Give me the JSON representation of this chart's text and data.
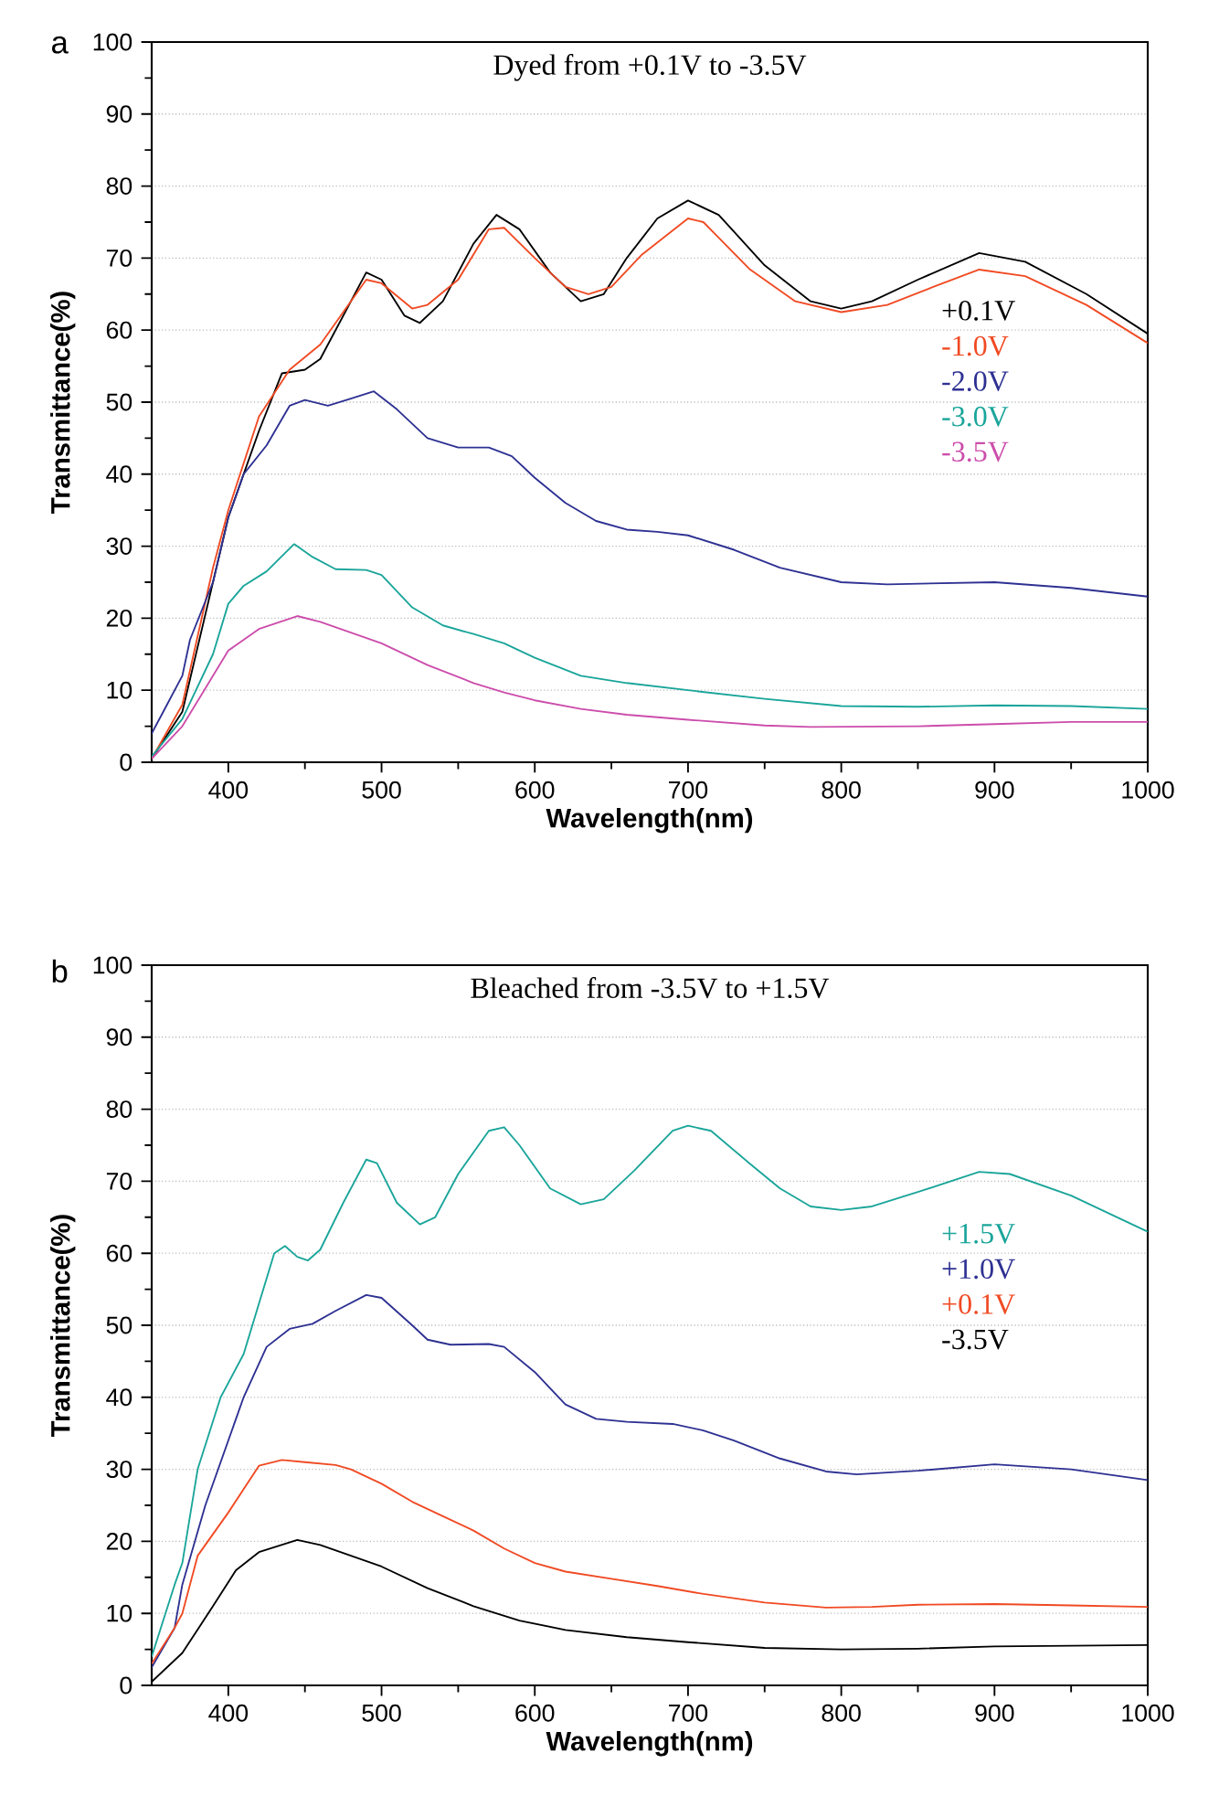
{
  "chart_data": [
    {
      "type": "line",
      "title": "Dyed from +0.1V to -3.5V",
      "xlabel": "Wavelength(nm)",
      "ylabel": "Transmittance(%)",
      "annotations": [
        "a"
      ],
      "xlim": [
        350,
        1000
      ],
      "xticks": [
        400,
        500,
        600,
        700,
        800,
        900,
        1000
      ],
      "ylim": [
        0,
        100
      ],
      "yticks": [
        0,
        10,
        20,
        30,
        40,
        50,
        60,
        70,
        80,
        90,
        100
      ],
      "grid": "y",
      "legend": "right",
      "line_style": "solid",
      "series": [
        {
          "name": "+0.1V",
          "color": "#000000",
          "x": [
            350,
            370,
            390,
            400,
            420,
            435,
            450,
            460,
            475,
            490,
            500,
            515,
            525,
            540,
            560,
            575,
            590,
            610,
            630,
            645,
            660,
            680,
            700,
            720,
            750,
            780,
            800,
            820,
            850,
            890,
            920,
            960,
            1000
          ],
          "values": [
            0.5,
            7,
            25,
            34,
            46,
            54,
            54.5,
            56,
            62,
            68,
            67,
            62,
            61,
            64,
            72,
            76,
            74,
            68,
            64,
            65,
            70,
            75.5,
            78,
            76,
            69,
            64,
            63,
            64,
            67,
            70.7,
            69.5,
            65,
            59.5
          ]
        },
        {
          "name": "-1.0V",
          "color": "#f04a23",
          "x": [
            350,
            370,
            390,
            400,
            420,
            440,
            460,
            480,
            490,
            500,
            520,
            530,
            550,
            570,
            580,
            600,
            620,
            635,
            650,
            670,
            700,
            710,
            740,
            770,
            800,
            830,
            860,
            890,
            920,
            960,
            1000
          ],
          "values": [
            0.5,
            8,
            27,
            35,
            48,
            54.5,
            58,
            64,
            67,
            66.5,
            63,
            63.5,
            67,
            74,
            74.2,
            70,
            66,
            65,
            66,
            70.5,
            75.5,
            75,
            68.5,
            64,
            62.5,
            63.5,
            66,
            68.4,
            67.5,
            63.5,
            58.2
          ]
        },
        {
          "name": "-2.0V",
          "color": "#2e3192",
          "x": [
            350,
            360,
            370,
            375,
            390,
            400,
            410,
            425,
            440,
            450,
            465,
            480,
            495,
            510,
            530,
            550,
            570,
            585,
            600,
            620,
            640,
            660,
            680,
            700,
            730,
            760,
            800,
            830,
            900,
            950,
            1000
          ],
          "values": [
            4,
            8,
            12,
            17,
            25,
            34,
            40,
            44,
            49.5,
            50.3,
            49.5,
            50.5,
            51.5,
            49,
            45,
            43.7,
            43.7,
            42.5,
            39.5,
            36,
            33.5,
            32.3,
            32,
            31.5,
            29.5,
            27,
            25,
            24.7,
            25,
            24.2,
            23
          ]
        },
        {
          "name": "-3.0V",
          "color": "#1aa59a",
          "x": [
            350,
            370,
            390,
            400,
            410,
            425,
            443,
            455,
            470,
            490,
            500,
            520,
            540,
            560,
            580,
            600,
            630,
            660,
            700,
            750,
            800,
            850,
            900,
            950,
            1000
          ],
          "values": [
            0.8,
            6,
            15,
            22,
            24.5,
            26.5,
            30.3,
            28.5,
            26.8,
            26.7,
            26,
            21.5,
            19,
            17.8,
            16.5,
            14.5,
            12,
            11,
            10,
            8.8,
            7.8,
            7.7,
            7.9,
            7.8,
            7.4
          ]
        },
        {
          "name": "-3.5V",
          "color": "#cc4dab",
          "x": [
            350,
            370,
            390,
            400,
            420,
            445,
            460,
            480,
            500,
            530,
            560,
            580,
            600,
            630,
            660,
            700,
            750,
            780,
            850,
            900,
            950,
            1000
          ],
          "values": [
            0.5,
            5,
            12,
            15.5,
            18.5,
            20.3,
            19.5,
            18,
            16.5,
            13.5,
            11,
            9.7,
            8.6,
            7.4,
            6.6,
            5.9,
            5.1,
            4.9,
            5,
            5.3,
            5.6,
            5.6
          ]
        }
      ]
    },
    {
      "type": "line",
      "title": "Bleached from -3.5V to +1.5V",
      "xlabel": "Wavelength(nm)",
      "ylabel": "Transmittance(%)",
      "annotations": [
        "b"
      ],
      "xlim": [
        350,
        1000
      ],
      "xticks": [
        400,
        500,
        600,
        700,
        800,
        900,
        1000
      ],
      "ylim": [
        0,
        100
      ],
      "yticks": [
        0,
        10,
        20,
        30,
        40,
        50,
        60,
        70,
        80,
        90,
        100
      ],
      "grid": "y",
      "legend": "right",
      "line_style": "solid",
      "series": [
        {
          "name": "+1.5V",
          "color": "#1aa59a",
          "x": [
            350,
            365,
            370,
            380,
            395,
            410,
            420,
            430,
            437,
            445,
            452,
            460,
            475,
            490,
            497,
            510,
            525,
            535,
            550,
            570,
            580,
            590,
            610,
            630,
            645,
            665,
            690,
            700,
            715,
            740,
            760,
            780,
            800,
            820,
            850,
            890,
            910,
            950,
            1000
          ],
          "values": [
            4,
            14,
            17,
            30,
            40,
            46,
            53,
            60,
            61,
            59.5,
            59,
            60.5,
            67,
            73,
            72.5,
            67,
            64,
            65,
            71,
            77,
            77.5,
            75,
            69,
            66.8,
            67.5,
            71.5,
            77,
            77.7,
            77,
            72.5,
            69,
            66.5,
            66,
            66.5,
            68.5,
            71.3,
            71,
            68,
            63
          ]
        },
        {
          "name": "+1.0V",
          "color": "#2e3192",
          "x": [
            350,
            365,
            370,
            385,
            400,
            410,
            425,
            440,
            455,
            470,
            490,
            500,
            520,
            530,
            545,
            570,
            580,
            600,
            620,
            640,
            660,
            690,
            710,
            730,
            760,
            790,
            810,
            850,
            900,
            950,
            1000
          ],
          "values": [
            2.5,
            8,
            14,
            25,
            34,
            40,
            47,
            49.5,
            50.2,
            52,
            54.2,
            53.8,
            50,
            48,
            47.3,
            47.4,
            47,
            43.5,
            39,
            37,
            36.6,
            36.3,
            35.4,
            34,
            31.5,
            29.7,
            29.3,
            29.8,
            30.7,
            30,
            28.5
          ]
        },
        {
          "name": "+0.1V",
          "color": "#f04a23",
          "x": [
            350,
            365,
            370,
            380,
            400,
            420,
            435,
            450,
            470,
            480,
            500,
            520,
            540,
            560,
            580,
            600,
            620,
            650,
            680,
            710,
            750,
            790,
            820,
            850,
            900,
            950,
            1000
          ],
          "values": [
            3,
            8,
            10,
            18,
            24,
            30.5,
            31.3,
            31,
            30.6,
            30,
            28,
            25.5,
            23.5,
            21.5,
            19,
            17,
            15.8,
            14.8,
            13.8,
            12.7,
            11.5,
            10.8,
            10.9,
            11.2,
            11.3,
            11.1,
            10.9
          ]
        },
        {
          "name": "-3.5V",
          "color": "#000000",
          "x": [
            350,
            370,
            390,
            405,
            420,
            445,
            460,
            480,
            500,
            530,
            560,
            590,
            620,
            660,
            700,
            750,
            800,
            850,
            900,
            1000
          ],
          "values": [
            0.5,
            4.5,
            11,
            16,
            18.5,
            20.2,
            19.5,
            18,
            16.5,
            13.5,
            11,
            9,
            7.7,
            6.7,
            6,
            5.2,
            5,
            5.1,
            5.4,
            5.6
          ]
        }
      ]
    }
  ]
}
